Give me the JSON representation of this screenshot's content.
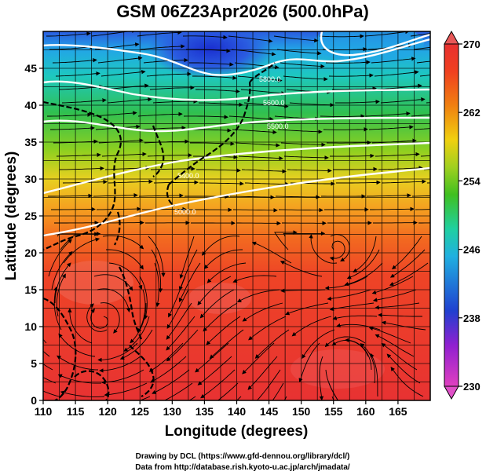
{
  "title": "GSM 06Z23Apr2026 (500.0hPa)",
  "x_axis": {
    "label": "Longitude (degrees)",
    "range": [
      110,
      170
    ],
    "ticks": [
      "110",
      "115",
      "120",
      "125",
      "130",
      "135",
      "140",
      "145",
      "150",
      "155",
      "160",
      "165"
    ]
  },
  "y_axis": {
    "label": "Latitude  (degrees)",
    "range": [
      0,
      50
    ],
    "ticks": [
      "0",
      "5",
      "10",
      "15",
      "20",
      "25",
      "30",
      "35",
      "40",
      "45"
    ]
  },
  "colorbar": {
    "range": [
      230,
      270
    ],
    "ticks": [
      "230",
      "238",
      "246",
      "254",
      "262",
      "270"
    ],
    "colors": [
      "#e040c0",
      "#9020d0",
      "#2040d0",
      "#20b0e0",
      "#20d0a0",
      "#40c020",
      "#a0d020",
      "#f0d010",
      "#f08010",
      "#f04020",
      "#e83030"
    ]
  },
  "contours": {
    "labels": [
      "5000.0",
      "5400.0",
      "5500.0",
      "5600.0",
      "5800.0"
    ]
  },
  "footer": {
    "line1": "Drawing by DCL (https://www.gfd-dennou.org/library/dcl/)",
    "line2": "Data from http://database.rish.kyoto-u.ac.jp/arch/jmadata/"
  }
}
